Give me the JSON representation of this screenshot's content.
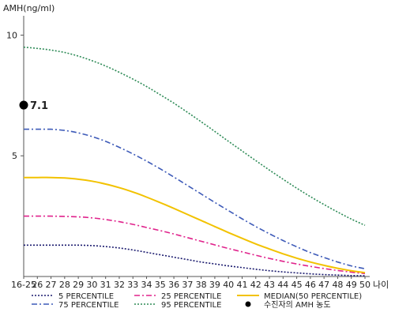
{
  "chart_data": {
    "type": "line",
    "ylabel": "AMH(ng/ml)",
    "xlabel": "나이",
    "ylim": [
      0,
      10.8
    ],
    "yticks": [
      5,
      10
    ],
    "categories": [
      "16-25",
      "26",
      "27",
      "28",
      "29",
      "30",
      "31",
      "32",
      "33",
      "34",
      "35",
      "36",
      "37",
      "38",
      "39",
      "40",
      "41",
      "42",
      "43",
      "44",
      "45",
      "46",
      "47",
      "48",
      "49",
      "50"
    ],
    "series": [
      {
        "name": "5 PERCENTILE",
        "color": "#1a1a6e",
        "dash": "2,2",
        "values": [
          1.3,
          1.3,
          1.3,
          1.3,
          1.3,
          1.28,
          1.24,
          1.18,
          1.1,
          1.0,
          0.9,
          0.8,
          0.7,
          0.6,
          0.52,
          0.44,
          0.37,
          0.3,
          0.24,
          0.19,
          0.15,
          0.11,
          0.08,
          0.06,
          0.04,
          0.03
        ]
      },
      {
        "name": "25 PERCENTILE",
        "color": "#e0238c",
        "dash": "7,3,2,3",
        "values": [
          2.5,
          2.5,
          2.5,
          2.49,
          2.47,
          2.43,
          2.36,
          2.27,
          2.16,
          2.03,
          1.9,
          1.76,
          1.61,
          1.46,
          1.31,
          1.16,
          1.02,
          0.88,
          0.75,
          0.63,
          0.52,
          0.42,
          0.33,
          0.25,
          0.18,
          0.12
        ]
      },
      {
        "name": "MEDIAN(50 PERCENTILE)",
        "color": "#f2c200",
        "dash": "",
        "values": [
          4.1,
          4.1,
          4.1,
          4.08,
          4.03,
          3.95,
          3.83,
          3.68,
          3.5,
          3.29,
          3.06,
          2.82,
          2.57,
          2.32,
          2.07,
          1.82,
          1.58,
          1.35,
          1.14,
          0.94,
          0.76,
          0.6,
          0.46,
          0.34,
          0.24,
          0.16
        ]
      },
      {
        "name": "75 PERCENTILE",
        "color": "#3d5ab8",
        "dash": "7,3,2,3",
        "values": [
          6.1,
          6.1,
          6.1,
          6.05,
          5.95,
          5.8,
          5.6,
          5.35,
          5.08,
          4.78,
          4.46,
          4.12,
          3.77,
          3.42,
          3.07,
          2.73,
          2.39,
          2.07,
          1.77,
          1.49,
          1.23,
          0.99,
          0.79,
          0.6,
          0.44,
          0.32
        ]
      },
      {
        "name": "95 PERCENTILE",
        "color": "#2e8b57",
        "dash": "2,2",
        "values": [
          9.5,
          9.45,
          9.38,
          9.28,
          9.13,
          8.94,
          8.72,
          8.46,
          8.18,
          7.87,
          7.53,
          7.18,
          6.8,
          6.41,
          6.01,
          5.6,
          5.2,
          4.8,
          4.41,
          4.03,
          3.66,
          3.31,
          2.98,
          2.67,
          2.38,
          2.12
        ]
      }
    ],
    "marker": {
      "label": "수진자의 AMH 농도",
      "value": 7.1,
      "value_label": "7.1",
      "x_index": 0,
      "color": "#000000"
    },
    "legend": {
      "placement": "bottom",
      "rows": [
        [
          "5 PERCENTILE",
          "25 PERCENTILE",
          "MEDIAN(50 PERCENTILE)"
        ],
        [
          "75 PERCENTILE",
          "95 PERCENTILE",
          "수진자의 AMH 농도"
        ]
      ]
    }
  }
}
